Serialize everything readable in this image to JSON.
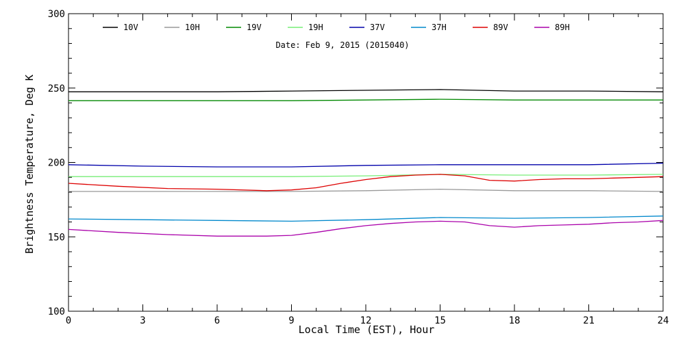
{
  "chart_data": {
    "type": "line",
    "annotation": "Date: Feb  9, 2015 (2015040)",
    "xlabel": "Local Time (EST), Hour",
    "ylabel": "Brightness Temperature, Deg K",
    "xlim": [
      0,
      24
    ],
    "ylim": [
      100,
      300
    ],
    "xticks": [
      0,
      3,
      6,
      9,
      12,
      15,
      18,
      21,
      24
    ],
    "yticks": [
      100,
      150,
      200,
      250,
      300
    ],
    "grid": false,
    "legend_position": "top",
    "series": [
      {
        "name": "10V",
        "color": "#000000",
        "x": [
          0,
          3,
          6,
          9,
          12,
          15,
          18,
          21,
          24
        ],
        "y": [
          247.5,
          247.5,
          247.5,
          248.0,
          248.5,
          249.0,
          248.0,
          248.0,
          247.5
        ]
      },
      {
        "name": "10H",
        "color": "#999999",
        "x": [
          0,
          3,
          6,
          9,
          12,
          15,
          18,
          21,
          24
        ],
        "y": [
          180.5,
          180.5,
          180.5,
          180.5,
          181.0,
          182.0,
          181.0,
          181.0,
          180.5
        ]
      },
      {
        "name": "19V",
        "color": "#008800",
        "x": [
          0,
          3,
          6,
          9,
          12,
          15,
          18,
          21,
          24
        ],
        "y": [
          241.5,
          241.5,
          241.5,
          241.5,
          242.0,
          242.5,
          242.0,
          242.0,
          242.0
        ]
      },
      {
        "name": "19H",
        "color": "#77ee77",
        "x": [
          0,
          3,
          6,
          9,
          12,
          15,
          18,
          21,
          24
        ],
        "y": [
          190.5,
          190.5,
          190.5,
          190.5,
          191.0,
          192.0,
          191.5,
          191.5,
          192.0
        ]
      },
      {
        "name": "37V",
        "color": "#0000aa",
        "x": [
          0,
          3,
          6,
          9,
          12,
          15,
          18,
          21,
          24
        ],
        "y": [
          198.5,
          197.5,
          197.0,
          197.0,
          198.0,
          198.5,
          198.5,
          198.5,
          199.5
        ]
      },
      {
        "name": "37H",
        "color": "#0088cc",
        "x": [
          0,
          3,
          6,
          9,
          12,
          15,
          18,
          21,
          24
        ],
        "y": [
          162.0,
          161.5,
          161.0,
          160.5,
          161.5,
          163.0,
          162.5,
          163.0,
          164.0
        ]
      },
      {
        "name": "89V",
        "color": "#dd0000",
        "x": [
          0,
          2,
          4,
          6,
          8,
          9,
          10,
          11,
          12,
          13,
          14,
          15,
          16,
          17,
          18,
          19,
          20,
          21,
          22,
          23,
          24
        ],
        "y": [
          186,
          184,
          182.5,
          182,
          181,
          181.5,
          183,
          186,
          188.5,
          190.5,
          191.5,
          192,
          191,
          188,
          187.5,
          188.5,
          189,
          189,
          189.5,
          190,
          190.5
        ]
      },
      {
        "name": "89H",
        "color": "#aa00aa",
        "x": [
          0,
          2,
          4,
          6,
          8,
          9,
          10,
          11,
          12,
          13,
          14,
          15,
          16,
          17,
          18,
          19,
          20,
          21,
          22,
          23,
          24
        ],
        "y": [
          155,
          153,
          151.5,
          150.5,
          150.5,
          151,
          153,
          155.5,
          157.5,
          159,
          160,
          160.5,
          160,
          157.5,
          156.5,
          157.5,
          158,
          158.5,
          159.5,
          160,
          161
        ]
      }
    ]
  }
}
